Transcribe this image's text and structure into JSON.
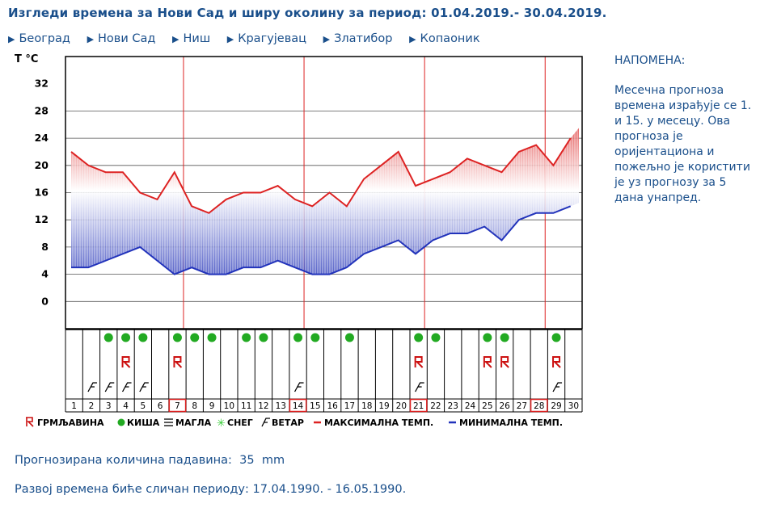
{
  "header": {
    "title": "Изгледи времена за Нови Сад и ширу околину за период: 01.04.2019.- 30.04.2019."
  },
  "cities": [
    "Београд",
    "Нови Сад",
    "Ниш",
    "Крагујевац",
    "Златибор",
    "Копаоник"
  ],
  "note": {
    "heading": "НАПОМЕНА:",
    "text_before_link": "Месечна прогноза времена израђује се 1. и 15. у месецу. Ова прогноза је оријентациона и пожељно је користити је уз прогнозу за ",
    "link": "5 дана",
    "text_after_link": " унапред."
  },
  "precip": {
    "label": "Прогнозирана количина падавина:",
    "value": "35",
    "unit": "mm"
  },
  "similar": {
    "label": "Развој времена биће сличан периоду:",
    "value": "17.04.1990. - 16.05.1990."
  },
  "colors": {
    "max_line": "#dd2222",
    "min_line": "#2233bb",
    "rain": "#22aa22",
    "grid": "#000000",
    "highlight": "#dd2222",
    "text": "#1a4f8b"
  },
  "chart_data": {
    "type": "line",
    "ylabel": "T °C",
    "yticks": [
      0,
      4,
      8,
      12,
      16,
      20,
      24,
      28,
      32
    ],
    "ylim": [
      -4,
      36
    ],
    "x": [
      1,
      2,
      3,
      4,
      5,
      6,
      7,
      8,
      9,
      10,
      11,
      12,
      13,
      14,
      15,
      16,
      17,
      18,
      19,
      20,
      21,
      22,
      23,
      24,
      25,
      26,
      27,
      28,
      29,
      30
    ],
    "series": [
      {
        "name": "МАКСИМАЛНА ТЕМП.",
        "values": [
          22,
          20,
          19,
          19,
          16,
          15,
          19,
          14,
          13,
          15,
          16,
          16,
          17,
          15,
          14,
          16,
          14,
          18,
          20,
          22,
          17,
          18,
          19,
          21,
          20,
          19,
          22,
          23,
          20,
          24
        ]
      },
      {
        "name": "МИНИМАЛНА ТЕМП.",
        "values": [
          5,
          5,
          6,
          7,
          8,
          6,
          4,
          5,
          4,
          4,
          5,
          5,
          6,
          5,
          4,
          4,
          5,
          7,
          8,
          9,
          7,
          9,
          10,
          10,
          11,
          9,
          12,
          13,
          13,
          14
        ]
      }
    ],
    "highlighted_days": [
      7,
      14,
      21,
      28
    ],
    "weather": {
      "rain": [
        3,
        4,
        5,
        7,
        8,
        9,
        11,
        12,
        14,
        15,
        17,
        21,
        22,
        25,
        26,
        29
      ],
      "thunderstorm": [
        4,
        7,
        21,
        25,
        26,
        29
      ],
      "wind": [
        2,
        3,
        4,
        5,
        14,
        21,
        29
      ],
      "fog": [],
      "snow": []
    },
    "legend": [
      "ГРМЉАВИНА",
      "КИША",
      "МАГЛА",
      "СНЕГ",
      "ВЕТАР",
      "МАКСИМАЛНА ТЕМП.",
      "МИНИМАЛНА ТЕМП."
    ]
  }
}
